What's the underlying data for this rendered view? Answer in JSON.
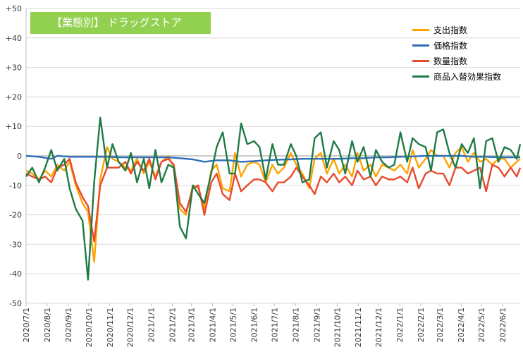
{
  "chart_data": {
    "type": "line",
    "title": "【業態別】 ドラッグストア",
    "ylim": [
      -50,
      50
    ],
    "y_ticks": [
      50,
      40,
      30,
      20,
      10,
      0,
      -10,
      -20,
      -30,
      -40,
      -50
    ],
    "y_tick_labels": [
      "+50",
      "+40",
      "+30",
      "+20",
      "+10",
      "0",
      "-10",
      "-20",
      "-30",
      "-40",
      "-50"
    ],
    "x_tick_labels": [
      "2020/7/1",
      "2020/8/1",
      "2020/9/1",
      "2020/10/1",
      "2020/11/1",
      "2020/12/1",
      "2021/1/1",
      "2021/2/1",
      "2021/3/1",
      "2021/4/1",
      "2021/5/1",
      "2021/6/1",
      "2021/7/1",
      "2021/8/1",
      "2021/9/1",
      "2021/10/1",
      "2021/11/1",
      "2021/12/1",
      "2022/1/1",
      "2022/2/1",
      "2022/3/1",
      "2022/4/1",
      "2022/5/1",
      "2022/6/1"
    ],
    "x_start": "2020/7/1",
    "x_end": "2022/6/27",
    "grid": "horizontal",
    "legend_position": "top-right",
    "series": [
      {
        "name": "支出指数",
        "color": "#ffa200",
        "x": [
          "2020/7/1",
          "2020/7/10",
          "2020/7/20",
          "2020/7/29",
          "2020/8/7",
          "2020/8/16",
          "2020/8/26",
          "2020/9/3",
          "2020/9/12",
          "2020/9/22",
          "2020/9/30",
          "2020/10/9",
          "2020/10/18",
          "2020/10/28",
          "2020/11/5",
          "2020/11/14",
          "2020/11/24",
          "2020/12/2",
          "2020/12/11",
          "2020/12/21",
          "2020/12/29",
          "2021/1/7",
          "2021/1/16",
          "2021/1/26",
          "2021/2/3",
          "2021/2/12",
          "2021/2/21",
          "2021/3/3",
          "2021/3/11",
          "2021/3/20",
          "2021/3/30",
          "2021/4/7",
          "2021/4/16",
          "2021/4/26",
          "2021/5/4",
          "2021/5/13",
          "2021/5/22",
          "2021/6/1",
          "2021/6/9",
          "2021/6/18",
          "2021/6/28",
          "2021/7/6",
          "2021/7/15",
          "2021/7/25",
          "2021/8/2",
          "2021/8/11",
          "2021/8/21",
          "2021/8/29",
          "2021/9/7",
          "2021/9/16",
          "2021/9/26",
          "2021/10/4",
          "2021/10/13",
          "2021/10/23",
          "2021/10/31",
          "2021/11/9",
          "2021/11/19",
          "2021/11/27",
          "2021/12/6",
          "2021/12/16",
          "2021/12/24",
          "2022/1/2",
          "2022/1/12",
          "2022/1/20",
          "2022/1/29",
          "2022/2/8",
          "2022/2/16",
          "2022/2/25",
          "2022/3/6",
          "2022/3/15",
          "2022/3/24",
          "2022/4/2",
          "2022/4/11",
          "2022/4/20",
          "2022/4/29",
          "2022/5/8",
          "2022/5/17",
          "2022/5/26",
          "2022/6/4",
          "2022/6/13",
          "2022/6/22",
          "2022/6/27"
        ],
        "values": [
          -5,
          -6,
          -8,
          -5,
          -7,
          -3,
          -5,
          -2,
          -10,
          -16,
          -19,
          -36,
          -8,
          3,
          -1,
          -2,
          -4,
          -5,
          -1,
          -6,
          -2,
          -7,
          -2,
          0,
          -4,
          -18,
          -20,
          -10,
          -11,
          -18,
          -5,
          -3,
          -11,
          -12,
          1,
          -7,
          -3,
          -2,
          -3,
          -9,
          -3,
          -6,
          -4,
          1,
          -3,
          -6,
          -11,
          -1,
          1,
          -6,
          -1,
          -6,
          -3,
          -7,
          1,
          -5,
          -3,
          -7,
          -3,
          -4,
          -5,
          -3,
          -6,
          2,
          -4,
          -1,
          2,
          0,
          0,
          -4,
          1,
          3,
          -2,
          1,
          -2,
          -1,
          -3,
          -1,
          -1,
          -4,
          -2,
          -1
        ],
        "note": "approximate reading"
      },
      {
        "name": "価格指数",
        "color": "#2e6fba",
        "x": [
          "2020/7/1",
          "2020/7/20",
          "2020/8/7",
          "2020/8/16",
          "2020/9/3",
          "2020/9/22",
          "2020/10/9",
          "2020/10/28",
          "2020/11/14",
          "2020/12/2",
          "2020/12/21",
          "2021/1/7",
          "2021/1/26",
          "2021/2/12",
          "2021/3/3",
          "2021/3/20",
          "2021/4/7",
          "2021/4/26",
          "2021/5/13",
          "2021/6/1",
          "2021/6/18",
          "2021/7/6",
          "2021/7/25",
          "2021/8/11",
          "2021/8/29",
          "2021/9/16",
          "2021/10/4",
          "2021/10/23",
          "2021/11/9",
          "2021/11/27",
          "2021/12/16",
          "2022/1/2",
          "2022/1/20",
          "2022/2/8",
          "2022/2/25",
          "2022/3/15",
          "2022/4/2",
          "2022/4/20",
          "2022/5/8",
          "2022/5/26",
          "2022/6/13",
          "2022/6/27"
        ],
        "values": [
          0,
          -0.3,
          -1,
          0,
          -0.3,
          -0.3,
          -0.3,
          -0.3,
          -0.5,
          -0.5,
          -0.5,
          -0.5,
          -0.5,
          -0.8,
          -1.2,
          -2,
          -1.5,
          -1.5,
          -2,
          -1.8,
          -1.5,
          -1.3,
          -1.2,
          -1,
          -1,
          -1,
          -1,
          -0.8,
          -0.8,
          -0.5,
          -0.5,
          -0.3,
          -0.2,
          0,
          0,
          0,
          0,
          -0.3,
          -0.3,
          -0.5,
          -0.5,
          -0.5
        ]
      },
      {
        "name": "数量指数",
        "color": "#e84a2c",
        "x": [
          "2020/7/1",
          "2020/7/10",
          "2020/7/20",
          "2020/7/29",
          "2020/8/7",
          "2020/8/16",
          "2020/8/26",
          "2020/9/3",
          "2020/9/12",
          "2020/9/22",
          "2020/9/30",
          "2020/10/9",
          "2020/10/18",
          "2020/10/28",
          "2020/11/5",
          "2020/11/14",
          "2020/11/24",
          "2020/12/2",
          "2020/12/11",
          "2020/12/21",
          "2020/12/29",
          "2021/1/7",
          "2021/1/16",
          "2021/1/26",
          "2021/2/3",
          "2021/2/12",
          "2021/2/21",
          "2021/3/3",
          "2021/3/11",
          "2021/3/20",
          "2021/3/30",
          "2021/4/7",
          "2021/4/16",
          "2021/4/26",
          "2021/5/4",
          "2021/5/13",
          "2021/5/22",
          "2021/6/1",
          "2021/6/9",
          "2021/6/18",
          "2021/6/28",
          "2021/7/6",
          "2021/7/15",
          "2021/7/25",
          "2021/8/2",
          "2021/8/11",
          "2021/8/21",
          "2021/8/29",
          "2021/9/7",
          "2021/9/16",
          "2021/9/26",
          "2021/10/4",
          "2021/10/13",
          "2021/10/23",
          "2021/10/31",
          "2021/11/9",
          "2021/11/19",
          "2021/11/27",
          "2021/12/6",
          "2021/12/16",
          "2021/12/24",
          "2022/1/2",
          "2022/1/12",
          "2022/1/20",
          "2022/1/29",
          "2022/2/8",
          "2022/2/16",
          "2022/2/25",
          "2022/3/6",
          "2022/3/15",
          "2022/3/24",
          "2022/4/2",
          "2022/4/11",
          "2022/4/20",
          "2022/4/29",
          "2022/5/8",
          "2022/5/17",
          "2022/5/26",
          "2022/6/4",
          "2022/6/13",
          "2022/6/22",
          "2022/6/27"
        ],
        "values": [
          -6,
          -7,
          -8,
          -7,
          -9,
          -4,
          -3,
          -1,
          -9,
          -14,
          -17,
          -29,
          -10,
          -4,
          -4,
          -4,
          -2,
          -6,
          -2,
          -5,
          -1,
          -8,
          -2,
          -1,
          -3,
          -16,
          -19,
          -11,
          -10,
          -20,
          -9,
          -6,
          -13,
          -15,
          -6,
          -12,
          -10,
          -8,
          -8,
          -9,
          -12,
          -9,
          -9,
          -7,
          -4,
          -7,
          -10,
          -13,
          -7,
          -9,
          -6,
          -9,
          -7,
          -10,
          -5,
          -8,
          -7,
          -10,
          -7,
          -8,
          -8,
          -7,
          -9,
          -4,
          -11,
          -6,
          -5,
          -6,
          -6,
          -10,
          -4,
          -4,
          -6,
          -5,
          -4,
          -12,
          -3,
          -4,
          -7,
          -4,
          -7,
          -4
        ],
        "note": "approximate reading"
      },
      {
        "name": "商品入替効果指数",
        "color": "#1e7b45",
        "x": [
          "2020/7/1",
          "2020/7/10",
          "2020/7/20",
          "2020/7/29",
          "2020/8/7",
          "2020/8/16",
          "2020/8/26",
          "2020/9/3",
          "2020/9/12",
          "2020/9/22",
          "2020/9/30",
          "2020/10/9",
          "2020/10/18",
          "2020/10/28",
          "2020/11/5",
          "2020/11/14",
          "2020/11/24",
          "2020/12/2",
          "2020/12/11",
          "2020/12/21",
          "2020/12/29",
          "2021/1/7",
          "2021/1/16",
          "2021/1/26",
          "2021/2/3",
          "2021/2/12",
          "2021/2/21",
          "2021/3/3",
          "2021/3/11",
          "2021/3/20",
          "2021/3/30",
          "2021/4/7",
          "2021/4/16",
          "2021/4/26",
          "2021/5/4",
          "2021/5/13",
          "2021/5/22",
          "2021/6/1",
          "2021/6/9",
          "2021/6/18",
          "2021/6/28",
          "2021/7/6",
          "2021/7/15",
          "2021/7/25",
          "2021/8/2",
          "2021/8/11",
          "2021/8/21",
          "2021/8/29",
          "2021/9/7",
          "2021/9/16",
          "2021/9/26",
          "2021/10/4",
          "2021/10/13",
          "2021/10/23",
          "2021/10/31",
          "2021/11/9",
          "2021/11/19",
          "2021/11/27",
          "2021/12/6",
          "2021/12/16",
          "2021/12/24",
          "2022/1/2",
          "2022/1/12",
          "2022/1/20",
          "2022/1/29",
          "2022/2/8",
          "2022/2/16",
          "2022/2/25",
          "2022/3/6",
          "2022/3/15",
          "2022/3/24",
          "2022/4/2",
          "2022/4/11",
          "2022/4/20",
          "2022/4/29",
          "2022/5/8",
          "2022/5/17",
          "2022/5/26",
          "2022/6/4",
          "2022/6/13",
          "2022/6/22",
          "2022/6/27"
        ],
        "values": [
          -7,
          -4,
          -9,
          -4,
          2,
          -5,
          -1,
          -11,
          -18,
          -22,
          -42,
          -9,
          13,
          -4,
          4,
          -2,
          -5,
          1,
          -9,
          -1,
          -11,
          2,
          -9,
          -3,
          -4,
          -24,
          -28,
          -10,
          -13,
          -16,
          -6,
          3,
          8,
          -6,
          -6,
          11,
          4,
          5,
          3,
          -8,
          4,
          -3,
          -3,
          4,
          0,
          -9,
          -8,
          6,
          8,
          -4,
          5,
          2,
          -6,
          5,
          -2,
          3,
          -7,
          2,
          -2,
          -4,
          -3,
          8,
          -2,
          6,
          4,
          3,
          -5,
          8,
          9,
          1,
          -4,
          4,
          1,
          6,
          -11,
          5,
          6,
          -2,
          3,
          2,
          -1,
          4
        ],
        "note": "approximate reading"
      }
    ]
  }
}
